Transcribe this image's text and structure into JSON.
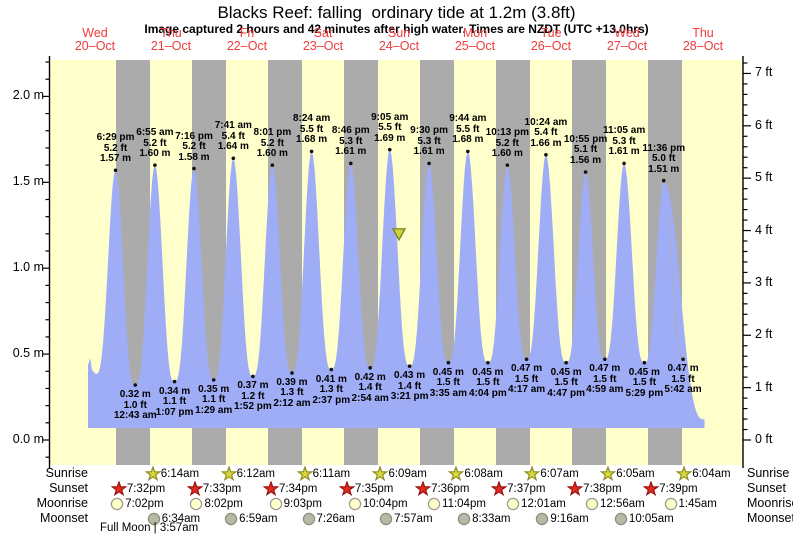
{
  "header": {
    "title": "Blacks Reef: falling  ordinary tide at 1.2m (3.8ft)",
    "subtitle": "Image captured 2 hours and 42 minutes after high water. Times are NZDT (UTC +13.0hrs)"
  },
  "days": [
    {
      "name": "Wed",
      "date": "20–Oct"
    },
    {
      "name": "Thu",
      "date": "21–Oct"
    },
    {
      "name": "Fri",
      "date": "22–Oct"
    },
    {
      "name": "Sat",
      "date": "23–Oct"
    },
    {
      "name": "Sun",
      "date": "24–Oct"
    },
    {
      "name": "Mon",
      "date": "25–Oct"
    },
    {
      "name": "Tue",
      "date": "26–Oct"
    },
    {
      "name": "Wed",
      "date": "27–Oct"
    },
    {
      "name": "Thu",
      "date": "28–Oct"
    }
  ],
  "axes": {
    "left_labels": [
      "0.0 m",
      "0.5 m",
      "1.0 m",
      "1.5 m",
      "2.0 m"
    ],
    "right_labels": [
      "0 ft",
      "1 ft",
      "2 ft",
      "3 ft",
      "4 ft",
      "5 ft",
      "6 ft",
      "7 ft"
    ]
  },
  "chart_data": {
    "type": "area",
    "title": "Blacks Reef: falling  ordinary tide at 1.2m (3.8ft)",
    "ylabel_left": "metres",
    "ylabel_right": "feet",
    "y_range_m": [
      0.0,
      2.2
    ],
    "x_days": [
      "Wed 20-Oct",
      "Thu 21-Oct",
      "Fri 22-Oct",
      "Sat 23-Oct",
      "Sun 24-Oct",
      "Mon 25-Oct",
      "Tue 26-Oct",
      "Wed 27-Oct",
      "Thu 28-Oct"
    ],
    "highs": [
      {
        "day": 0,
        "time": "6:29 pm",
        "ft": "5.2 ft",
        "m": "1.57 m",
        "height_m": 1.57
      },
      {
        "day": 1,
        "time": "6:55 am",
        "ft": "5.2 ft",
        "m": "1.60 m",
        "height_m": 1.6
      },
      {
        "day": 1,
        "time": "7:16 pm",
        "ft": "5.2 ft",
        "m": "1.58 m",
        "height_m": 1.58
      },
      {
        "day": 2,
        "time": "7:41 am",
        "ft": "5.4 ft",
        "m": "1.64 m",
        "height_m": 1.64
      },
      {
        "day": 2,
        "time": "8:01 pm",
        "ft": "5.2 ft",
        "m": "1.60 m",
        "height_m": 1.6
      },
      {
        "day": 3,
        "time": "8:24 am",
        "ft": "5.5 ft",
        "m": "1.68 m",
        "height_m": 1.68
      },
      {
        "day": 3,
        "time": "8:46 pm",
        "ft": "5.3 ft",
        "m": "1.61 m",
        "height_m": 1.61
      },
      {
        "day": 4,
        "time": "9:05 am",
        "ft": "5.5 ft",
        "m": "1.69 m",
        "height_m": 1.69
      },
      {
        "day": 4,
        "time": "9:30 pm",
        "ft": "5.3 ft",
        "m": "1.61 m",
        "height_m": 1.61
      },
      {
        "day": 5,
        "time": "9:44 am",
        "ft": "5.5 ft",
        "m": "1.68 m",
        "height_m": 1.68
      },
      {
        "day": 5,
        "time": "10:13 pm",
        "ft": "5.2 ft",
        "m": "1.60 m",
        "height_m": 1.6
      },
      {
        "day": 6,
        "time": "10:24 am",
        "ft": "5.4 ft",
        "m": "1.66 m",
        "height_m": 1.66
      },
      {
        "day": 6,
        "time": "10:55 pm",
        "ft": "5.1 ft",
        "m": "1.56 m",
        "height_m": 1.56
      },
      {
        "day": 7,
        "time": "11:05 am",
        "ft": "5.3 ft",
        "m": "1.61 m",
        "height_m": 1.61
      },
      {
        "day": 7,
        "time": "11:36 pm",
        "ft": "5.0 ft",
        "m": "1.51 m",
        "height_m": 1.51
      },
      {
        "day": 8,
        "time": "",
        "ft": "",
        "m": "",
        "height_m": 1.49,
        "hour": 12.0
      }
    ],
    "lows": [
      {
        "day": 1,
        "time": "12:43 am",
        "ft": "1.0 ft",
        "m": "0.32 m",
        "height_m": 0.32
      },
      {
        "day": 1,
        "time": "1:07 pm",
        "ft": "1.1 ft",
        "m": "0.34 m",
        "height_m": 0.34
      },
      {
        "day": 2,
        "time": "1:29 am",
        "ft": "1.1 ft",
        "m": "0.35 m",
        "height_m": 0.35
      },
      {
        "day": 2,
        "time": "1:52 pm",
        "ft": "1.2 ft",
        "m": "0.37 m",
        "height_m": 0.37
      },
      {
        "day": 3,
        "time": "2:12 am",
        "ft": "1.3 ft",
        "m": "0.39 m",
        "height_m": 0.39
      },
      {
        "day": 3,
        "time": "2:37 pm",
        "ft": "1.3 ft",
        "m": "0.41 m",
        "height_m": 0.41
      },
      {
        "day": 4,
        "time": "2:54 am",
        "ft": "1.4 ft",
        "m": "0.42 m",
        "height_m": 0.42
      },
      {
        "day": 4,
        "time": "3:21 pm",
        "ft": "1.4 ft",
        "m": "0.43 m",
        "height_m": 0.43
      },
      {
        "day": 5,
        "time": "3:35 am",
        "ft": "1.5 ft",
        "m": "0.45 m",
        "height_m": 0.45
      },
      {
        "day": 5,
        "time": "4:04 pm",
        "ft": "1.5 ft",
        "m": "0.45 m",
        "height_m": 0.45
      },
      {
        "day": 6,
        "time": "4:17 am",
        "ft": "1.5 ft",
        "m": "0.47 m",
        "height_m": 0.47
      },
      {
        "day": 6,
        "time": "4:47 pm",
        "ft": "1.5 ft",
        "m": "0.45 m",
        "height_m": 0.45
      },
      {
        "day": 7,
        "time": "4:59 am",
        "ft": "1.5 ft",
        "m": "0.47 m",
        "height_m": 0.47
      },
      {
        "day": 7,
        "time": "5:29 pm",
        "ft": "1.5 ft",
        "m": "0.45 m",
        "height_m": 0.45
      },
      {
        "day": 8,
        "time": "5:42 am",
        "ft": "1.5 ft",
        "m": "0.47 m",
        "height_m": 0.47
      }
    ],
    "current_marker": {
      "day": 4,
      "hour": 12.0,
      "level_m": 1.2
    }
  },
  "astro": {
    "rows": [
      {
        "label": "Sunrise",
        "icon": "sunrise-star",
        "entries": [
          {
            "time": "6:14am",
            "day": 1
          },
          {
            "time": "6:12am",
            "day": 2
          },
          {
            "time": "6:11am",
            "day": 3
          },
          {
            "time": "6:09am",
            "day": 4
          },
          {
            "time": "6:08am",
            "day": 5
          },
          {
            "time": "6:07am",
            "day": 6
          },
          {
            "time": "6:05am",
            "day": 7
          },
          {
            "time": "6:04am",
            "day": 8
          }
        ]
      },
      {
        "label": "Sunset",
        "icon": "sunset-star",
        "entries": [
          {
            "time": "7:32pm",
            "day": 0
          },
          {
            "time": "7:33pm",
            "day": 1
          },
          {
            "time": "7:34pm",
            "day": 2
          },
          {
            "time": "7:35pm",
            "day": 3
          },
          {
            "time": "7:36pm",
            "day": 4
          },
          {
            "time": "7:37pm",
            "day": 5
          },
          {
            "time": "7:38pm",
            "day": 6
          },
          {
            "time": "7:39pm",
            "day": 7
          }
        ]
      },
      {
        "label": "Moonrise",
        "icon": "moonrise-circle",
        "entries": [
          {
            "time": "7:02pm",
            "day": 0
          },
          {
            "time": "8:02pm",
            "day": 1
          },
          {
            "time": "9:03pm",
            "day": 2
          },
          {
            "time": "10:04pm",
            "day": 3
          },
          {
            "time": "11:04pm",
            "day": 4
          },
          {
            "time": "12:01am",
            "day": 6
          },
          {
            "time": "12:56am",
            "day": 7
          },
          {
            "time": "1:45am",
            "day": 8
          }
        ]
      },
      {
        "label": "Moonset",
        "icon": "moonset-circle",
        "entries": [
          {
            "time": "6:34am",
            "day": 1
          },
          {
            "time": "6:59am",
            "day": 2
          },
          {
            "time": "7:26am",
            "day": 3
          },
          {
            "time": "7:57am",
            "day": 4
          },
          {
            "time": "8:33am",
            "day": 5
          },
          {
            "time": "9:16am",
            "day": 6
          },
          {
            "time": "10:05am",
            "day": 7
          }
        ]
      }
    ],
    "moon_phase": "Full Moon | 3:57am"
  },
  "colors": {
    "day_band": "#ffffcc",
    "night_band": "#ababab",
    "tide_fill": "#9fadf7",
    "day_label": "#f03c3c",
    "sunrise_fill": "#d8d83a",
    "sunrise_border": "#8f8f25",
    "sunset_fill": "#e32a20",
    "sunset_border": "#9e1313",
    "moonrise_fill": "#ffffcc",
    "moonrise_border": "#9a9a88",
    "moonset_fill": "#b8b8a6",
    "moonset_border": "#8c8c7a",
    "marker_fill": "#ccd23c",
    "marker_border": "#7e7e1e"
  }
}
